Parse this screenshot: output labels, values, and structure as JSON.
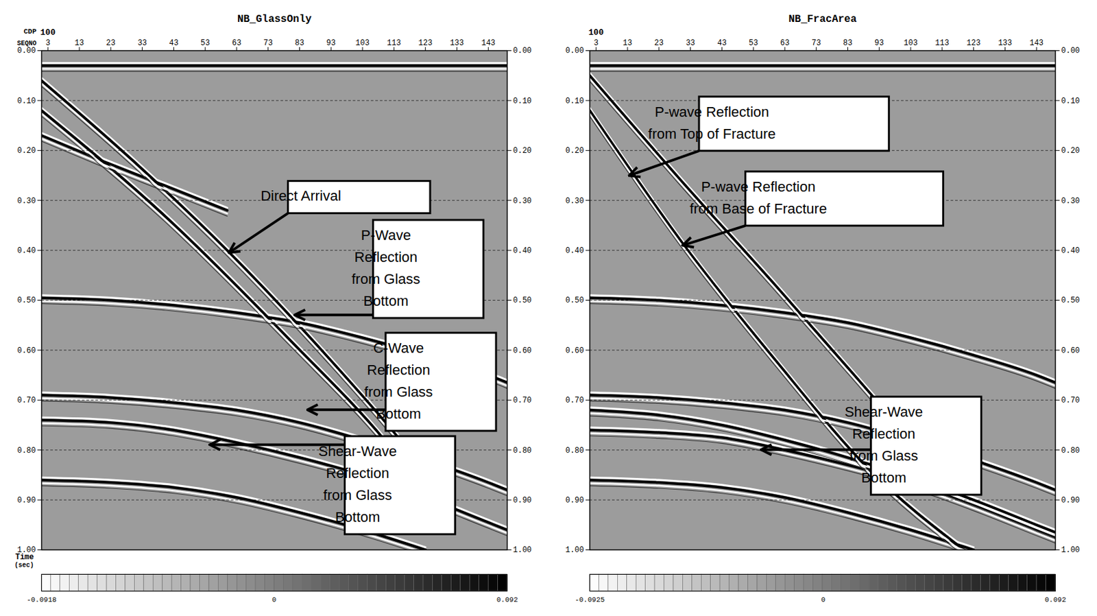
{
  "chart_data": [
    {
      "type": "seismic_section",
      "title": "NB_GlassOnly",
      "cdp_label": "CDP",
      "x_label": "SEQNO",
      "y_label": [
        "Time",
        "(sec)"
      ],
      "cdp_ticks": [
        {
          "value": 3,
          "label": "100"
        }
      ],
      "xlim": [
        1,
        149
      ],
      "xticks": [
        3,
        13,
        23,
        33,
        43,
        53,
        63,
        73,
        83,
        93,
        103,
        113,
        123,
        133,
        143
      ],
      "ylim": [
        0,
        1
      ],
      "yticks": [
        {
          "value": 0,
          "label": "0.00"
        },
        {
          "value": 0.1,
          "label": "0.10"
        },
        {
          "value": 0.2,
          "label": "0.20"
        },
        {
          "value": 0.3,
          "label": "0.30"
        },
        {
          "value": 0.4,
          "label": "0.40"
        },
        {
          "value": 0.5,
          "label": "0.50"
        },
        {
          "value": 0.6,
          "label": "0.60"
        },
        {
          "value": 0.7,
          "label": "0.70"
        },
        {
          "value": 0.8,
          "label": "0.80"
        },
        {
          "value": 0.9,
          "label": "0.90"
        },
        {
          "value": 1,
          "label": "1.00"
        }
      ],
      "grid": true,
      "events": [
        {
          "x": [
            1,
            149
          ],
          "t": [
            0.03,
            0.03
          ]
        },
        {
          "x": [
            1,
            30,
            60,
            90,
            115,
            130
          ],
          "t": [
            0.06,
            0.22,
            0.4,
            0.6,
            0.78,
            0.9
          ]
        },
        {
          "x": [
            1,
            40,
            80,
            110,
            125
          ],
          "t": [
            0.12,
            0.33,
            0.58,
            0.78,
            0.9
          ]
        },
        {
          "x": [
            1,
            20,
            40,
            60
          ],
          "t": [
            0.17,
            0.22,
            0.27,
            0.32
          ]
        },
        {
          "x": [
            1,
            23,
            43,
            63,
            83,
            103,
            123,
            143,
            149
          ],
          "t": [
            0.495,
            0.5,
            0.51,
            0.525,
            0.545,
            0.575,
            0.61,
            0.65,
            0.665
          ]
        },
        {
          "x": [
            1,
            23,
            43,
            63,
            83,
            103,
            123,
            143,
            149
          ],
          "t": [
            0.69,
            0.695,
            0.705,
            0.72,
            0.745,
            0.78,
            0.82,
            0.865,
            0.88
          ]
        },
        {
          "x": [
            1,
            23,
            43,
            63,
            83,
            103,
            123,
            143,
            149
          ],
          "t": [
            0.74,
            0.745,
            0.76,
            0.785,
            0.815,
            0.85,
            0.895,
            0.945,
            0.96
          ]
        },
        {
          "x": [
            1,
            23,
            43,
            63,
            83,
            103,
            123
          ],
          "t": [
            0.86,
            0.865,
            0.875,
            0.895,
            0.925,
            0.96,
            1
          ]
        }
      ],
      "annotations": [
        {
          "lines": [
            "Direct Arrival"
          ],
          "point": [
            61,
            0.404
          ]
        },
        {
          "lines": [
            "P-Wave",
            "Reflection",
            "from Glass",
            "Bottom"
          ],
          "point": [
            82,
            0.53
          ]
        },
        {
          "lines": [
            "C-Wave",
            "Reflection",
            "from Glass",
            "Bottom"
          ],
          "point": [
            86,
            0.72
          ]
        },
        {
          "lines": [
            "Shear-Wave",
            "Reflection",
            "from Glass",
            "Bottom"
          ],
          "point": [
            55,
            0.79
          ]
        }
      ],
      "colorbar": {
        "range": [
          -0.0918,
          0.092
        ],
        "ticks": [
          -0.0918,
          0,
          0.092
        ]
      }
    },
    {
      "type": "seismic_section",
      "title": "NB_FracArea",
      "cdp_ticks": [
        {
          "value": 3,
          "label": "100"
        }
      ],
      "xlim": [
        1,
        149
      ],
      "xticks": [
        3,
        13,
        23,
        33,
        43,
        53,
        63,
        73,
        83,
        93,
        103,
        113,
        123,
        133,
        143
      ],
      "ylim": [
        0,
        1
      ],
      "yticks": [
        {
          "value": 0,
          "label": "0.00"
        },
        {
          "value": 0.1,
          "label": "0.10"
        },
        {
          "value": 0.2,
          "label": "0.20"
        },
        {
          "value": 0.3,
          "label": "0.30"
        },
        {
          "value": 0.4,
          "label": "0.40"
        },
        {
          "value": 0.5,
          "label": "0.50"
        },
        {
          "value": 0.6,
          "label": "0.60"
        },
        {
          "value": 0.7,
          "label": "0.70"
        },
        {
          "value": 0.8,
          "label": "0.80"
        },
        {
          "value": 0.9,
          "label": "0.90"
        },
        {
          "value": 1,
          "label": "1.00"
        }
      ],
      "grid": true,
      "events": [
        {
          "x": [
            1,
            149
          ],
          "t": [
            0.03,
            0.03
          ]
        },
        {
          "x": [
            1,
            30,
            60,
            92,
            110
          ],
          "t": [
            0.05,
            0.26,
            0.47,
            0.7,
            0.83
          ]
        },
        {
          "x": [
            1,
            31,
            60,
            90,
            120
          ],
          "t": [
            0.12,
            0.39,
            0.62,
            0.84,
            1
          ]
        },
        {
          "x": [
            1,
            23,
            43,
            63,
            83,
            103,
            123,
            143,
            149
          ],
          "t": [
            0.495,
            0.5,
            0.51,
            0.525,
            0.545,
            0.575,
            0.61,
            0.65,
            0.665
          ]
        },
        {
          "x": [
            1,
            23,
            43,
            63,
            83,
            103,
            123,
            143,
            149
          ],
          "t": [
            0.69,
            0.695,
            0.705,
            0.72,
            0.745,
            0.78,
            0.82,
            0.865,
            0.88
          ]
        },
        {
          "x": [
            1,
            23,
            43,
            63,
            83,
            103,
            123,
            143,
            149
          ],
          "t": [
            0.72,
            0.73,
            0.75,
            0.78,
            0.815,
            0.855,
            0.9,
            0.95,
            0.965
          ]
        },
        {
          "x": [
            1,
            23,
            43,
            63,
            83,
            103,
            123,
            143,
            149
          ],
          "t": [
            0.76,
            0.765,
            0.775,
            0.8,
            0.83,
            0.865,
            0.91,
            0.96,
            0.975
          ]
        },
        {
          "x": [
            1,
            23,
            43,
            63,
            83,
            103,
            123
          ],
          "t": [
            0.86,
            0.865,
            0.875,
            0.895,
            0.925,
            0.96,
            1
          ]
        }
      ],
      "annotations": [
        {
          "lines": [
            "P-wave Reflection",
            "from Top of Fracture"
          ],
          "point": [
            14,
            0.25
          ]
        },
        {
          "lines": [
            "P-wave Reflection",
            "from Base of Fracture"
          ],
          "point": [
            31,
            0.39
          ]
        },
        {
          "lines": [
            "Shear-Wave",
            "Reflection",
            "from Glass",
            "Bottom"
          ],
          "point": [
            56,
            0.8
          ]
        }
      ],
      "colorbar": {
        "range": [
          -0.0925,
          0.092
        ],
        "ticks": [
          -0.0925,
          0,
          0.092
        ]
      }
    }
  ]
}
